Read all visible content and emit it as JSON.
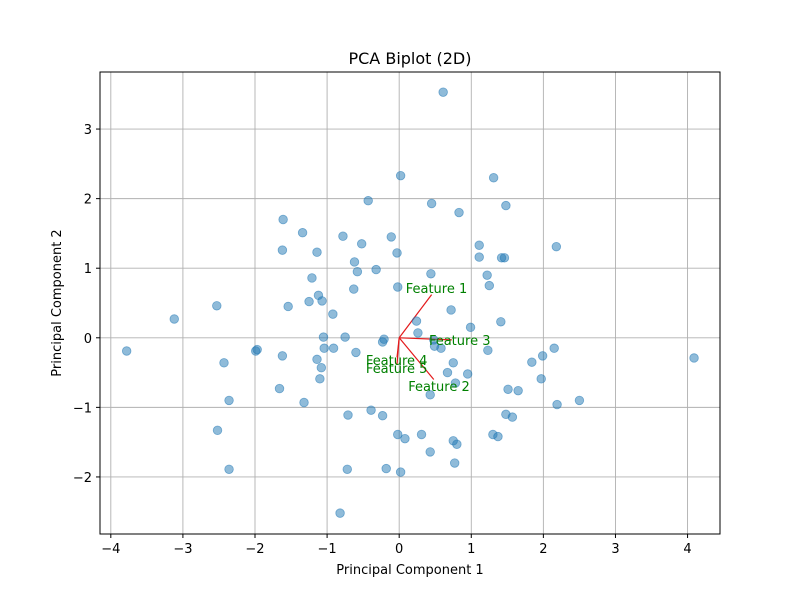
{
  "chart_data": {
    "type": "scatter",
    "title": "PCA Biplot (2D)",
    "xlabel": "Principal Component 1",
    "ylabel": "Principal Component 2",
    "xlim": [
      -4.15,
      4.45
    ],
    "ylim": [
      -2.82,
      3.82
    ],
    "xticks": [
      -4,
      -3,
      -2,
      -1,
      0,
      1,
      2,
      3,
      4
    ],
    "yticks": [
      -2,
      -1,
      0,
      1,
      2,
      3
    ],
    "grid": true,
    "colors": {
      "points": "#1f77b4",
      "loadings": "#e31a1c",
      "loading_labels": "#008000",
      "grid": "#b0b0b0"
    },
    "points": [
      [
        0.61,
        3.53
      ],
      [
        0.02,
        2.33
      ],
      [
        1.31,
        2.3
      ],
      [
        -0.43,
        1.97
      ],
      [
        0.45,
        1.93
      ],
      [
        0.83,
        1.8
      ],
      [
        1.48,
        1.9
      ],
      [
        -1.61,
        1.7
      ],
      [
        -1.34,
        1.51
      ],
      [
        -0.78,
        1.46
      ],
      [
        -0.52,
        1.35
      ],
      [
        -0.11,
        1.45
      ],
      [
        1.11,
        1.33
      ],
      [
        2.18,
        1.31
      ],
      [
        -1.62,
        1.26
      ],
      [
        -1.14,
        1.23
      ],
      [
        -0.03,
        1.22
      ],
      [
        1.11,
        1.16
      ],
      [
        1.42,
        1.15
      ],
      [
        1.46,
        1.15
      ],
      [
        -0.62,
        1.09
      ],
      [
        -0.58,
        0.95
      ],
      [
        -0.32,
        0.98
      ],
      [
        0.44,
        0.92
      ],
      [
        1.22,
        0.9
      ],
      [
        -1.21,
        0.86
      ],
      [
        1.25,
        0.75
      ],
      [
        -0.63,
        0.7
      ],
      [
        -0.02,
        0.73
      ],
      [
        -1.12,
        0.61
      ],
      [
        -1.25,
        0.52
      ],
      [
        -1.07,
        0.53
      ],
      [
        -2.53,
        0.46
      ],
      [
        -1.54,
        0.45
      ],
      [
        0.72,
        0.4
      ],
      [
        -3.12,
        0.27
      ],
      [
        -0.92,
        0.34
      ],
      [
        0.24,
        0.24
      ],
      [
        1.41,
        0.23
      ],
      [
        0.99,
        0.15
      ],
      [
        0.26,
        0.07
      ],
      [
        -1.05,
        0.01
      ],
      [
        -0.75,
        0.01
      ],
      [
        -0.21,
        -0.02
      ],
      [
        -0.23,
        -0.06
      ],
      [
        0.48,
        -0.03
      ],
      [
        0.49,
        -0.12
      ],
      [
        0.58,
        -0.15
      ],
      [
        -1.04,
        -0.15
      ],
      [
        -0.91,
        -0.15
      ],
      [
        -1.97,
        -0.17
      ],
      [
        -1.99,
        -0.19
      ],
      [
        -3.78,
        -0.19
      ],
      [
        -0.6,
        -0.21
      ],
      [
        1.23,
        -0.18
      ],
      [
        2.15,
        -0.15
      ],
      [
        -1.62,
        -0.26
      ],
      [
        1.99,
        -0.26
      ],
      [
        4.09,
        -0.29
      ],
      [
        -1.14,
        -0.31
      ],
      [
        -2.43,
        -0.36
      ],
      [
        1.84,
        -0.35
      ],
      [
        -1.08,
        -0.43
      ],
      [
        0.75,
        -0.36
      ],
      [
        0.67,
        -0.5
      ],
      [
        0.95,
        -0.52
      ],
      [
        -1.1,
        -0.59
      ],
      [
        1.97,
        -0.59
      ],
      [
        0.78,
        -0.65
      ],
      [
        1.51,
        -0.74
      ],
      [
        1.65,
        -0.76
      ],
      [
        -1.66,
        -0.73
      ],
      [
        0.43,
        -0.82
      ],
      [
        -2.36,
        -0.9
      ],
      [
        -1.32,
        -0.93
      ],
      [
        2.5,
        -0.9
      ],
      [
        2.19,
        -0.96
      ],
      [
        -0.39,
        -1.04
      ],
      [
        -0.71,
        -1.11
      ],
      [
        -0.23,
        -1.12
      ],
      [
        1.48,
        -1.1
      ],
      [
        1.57,
        -1.14
      ],
      [
        -2.52,
        -1.33
      ],
      [
        -0.02,
        -1.39
      ],
      [
        0.31,
        -1.39
      ],
      [
        0.08,
        -1.45
      ],
      [
        1.3,
        -1.39
      ],
      [
        1.37,
        -1.42
      ],
      [
        0.75,
        -1.48
      ],
      [
        0.8,
        -1.53
      ],
      [
        0.43,
        -1.64
      ],
      [
        0.77,
        -1.8
      ],
      [
        -2.36,
        -1.89
      ],
      [
        -0.72,
        -1.89
      ],
      [
        -0.18,
        -1.88
      ],
      [
        0.02,
        -1.93
      ],
      [
        -0.82,
        -2.52
      ]
    ],
    "loadings": [
      {
        "name": "Feature 1",
        "x": 0.45,
        "y": 0.62
      },
      {
        "name": "Feature 2",
        "x": 0.48,
        "y": -0.6
      },
      {
        "name": "Feature 3",
        "x": 0.73,
        "y": -0.03
      },
      {
        "name": "Feature 4",
        "x": -0.03,
        "y": -0.28
      },
      {
        "name": "Feature 5",
        "x": -0.03,
        "y": -0.38
      }
    ]
  }
}
